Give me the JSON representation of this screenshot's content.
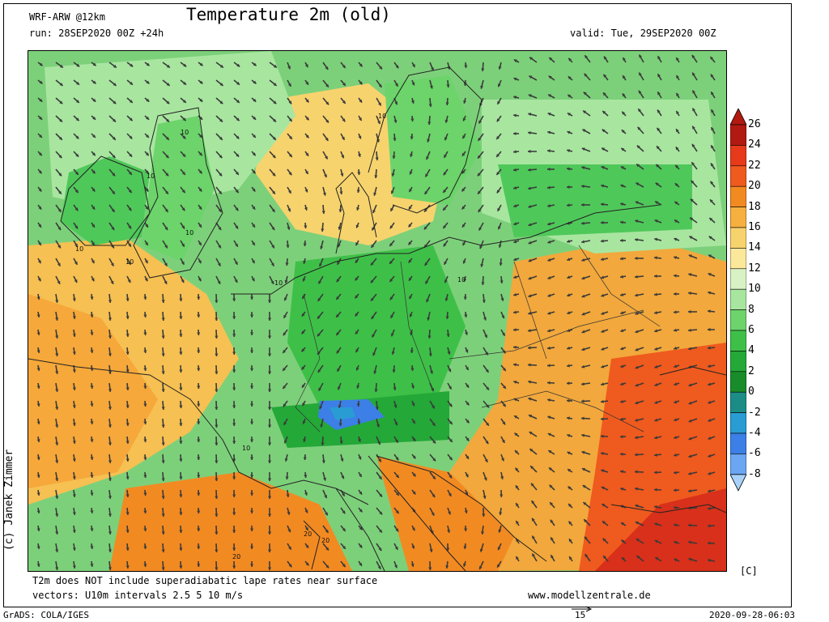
{
  "header": {
    "model": "WRF-ARW @12km",
    "title": "Temperature 2m (old)",
    "run": "run: 28SEP2020 00Z +24h",
    "valid": "valid: Tue, 29SEP2020 00Z"
  },
  "footer": {
    "note1": "T2m does NOT include superadiabatic lape rates near surface",
    "note2": "vectors: U10m intervals 2.5 5 10 m/s",
    "website": "www.modellzentrale.de",
    "grads": "GrADS: COLA/IGES",
    "timestamp": "2020-09-28-06:03",
    "vector_ref": "15"
  },
  "credit": "(c) Janek Zimmer",
  "colorbar": {
    "unit": "[C]",
    "levels": [
      {
        "label": "26",
        "color": "#b01a10"
      },
      {
        "label": "24",
        "color": "#e63a1a"
      },
      {
        "label": "22",
        "color": "#ef5a1e"
      },
      {
        "label": "20",
        "color": "#f28a22"
      },
      {
        "label": "18",
        "color": "#f6b040"
      },
      {
        "label": "16",
        "color": "#f7d36e"
      },
      {
        "label": "14",
        "color": "#fbe89a"
      },
      {
        "label": "12",
        "color": "#d9f2c4"
      },
      {
        "label": "10",
        "color": "#a8e6a0"
      },
      {
        "label": "8",
        "color": "#6cd46a"
      },
      {
        "label": "6",
        "color": "#3ec048"
      },
      {
        "label": "4",
        "color": "#24a838"
      },
      {
        "label": "2",
        "color": "#188c2a"
      },
      {
        "label": "0",
        "color": "#1c8d86"
      },
      {
        "label": "-2",
        "color": "#2a9cd4"
      },
      {
        "label": "-4",
        "color": "#3c7fe6"
      },
      {
        "label": "-6",
        "color": "#6aa6f2"
      },
      {
        "label": "-8",
        "color": "#a8d2fa"
      }
    ]
  },
  "contour_labels": [
    "10",
    "10",
    "10",
    "10",
    "10",
    "10",
    "10",
    "10",
    "10",
    "20",
    "20",
    "20"
  ]
}
